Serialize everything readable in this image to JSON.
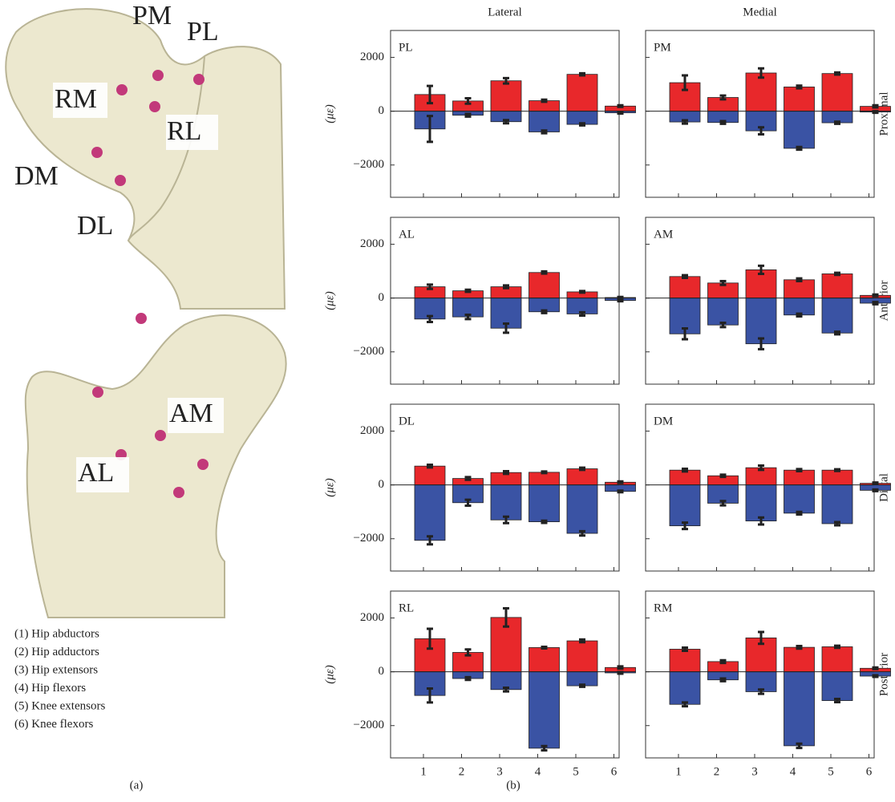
{
  "figure": {
    "labels_top": [
      "PM",
      "PL",
      "RM",
      "RL",
      "DM",
      "DL"
    ],
    "labels_bottom": [
      "AM",
      "AL"
    ],
    "legend": [
      "(1) Hip abductors",
      "(2) Hip adductors",
      "(3) Hip extensors",
      "(4) Hip flexors",
      "(5) Knee extensors",
      "(6) Knee flexors"
    ],
    "caption_a": "(a)",
    "caption_b": "(b)"
  },
  "columns": [
    "Lateral",
    "Medial"
  ],
  "rows": [
    "Proximal",
    "Anterior",
    "Distal",
    "Posterior"
  ],
  "shared": {
    "ylabel": "(με)",
    "categories": [
      "1",
      "2",
      "3",
      "4",
      "5",
      "6"
    ],
    "ylim": [
      -3200,
      3000
    ],
    "yticks": [
      {
        "value": -2000,
        "label": "−2000"
      },
      0,
      2000
    ]
  },
  "chart_data": [
    {
      "type": "bar",
      "label": "PL",
      "series": [
        {
          "color": "#e8282b",
          "values": [
            620,
            380,
            1130,
            390,
            1370,
            190
          ],
          "errors": [
            320,
            100,
            100,
            40,
            40,
            30
          ]
        },
        {
          "color": "#3a53a4",
          "values": [
            -660,
            -150,
            -390,
            -770,
            -490,
            -60
          ],
          "errors": [
            480,
            50,
            60,
            50,
            40,
            30
          ]
        }
      ]
    },
    {
      "type": "bar",
      "label": "PM",
      "series": [
        {
          "color": "#e8282b",
          "values": [
            1060,
            510,
            1420,
            900,
            1400,
            180
          ],
          "errors": [
            270,
            70,
            170,
            50,
            40,
            40
          ]
        },
        {
          "color": "#3a53a4",
          "values": [
            -400,
            -420,
            -730,
            -1380,
            -430,
            -30
          ],
          "errors": [
            60,
            50,
            130,
            50,
            40,
            30
          ]
        }
      ]
    },
    {
      "type": "bar",
      "label": "AL",
      "series": [
        {
          "color": "#e8282b",
          "values": [
            420,
            270,
            420,
            950,
            230,
            20
          ],
          "errors": [
            80,
            40,
            50,
            40,
            30,
            20
          ]
        },
        {
          "color": "#3a53a4",
          "values": [
            -780,
            -700,
            -1120,
            -510,
            -590,
            -90
          ],
          "errors": [
            110,
            80,
            170,
            50,
            60,
            30
          ]
        }
      ]
    },
    {
      "type": "bar",
      "label": "AM",
      "series": [
        {
          "color": "#e8282b",
          "values": [
            800,
            560,
            1050,
            680,
            900,
            100
          ],
          "errors": [
            50,
            70,
            150,
            50,
            40,
            30
          ]
        },
        {
          "color": "#3a53a4",
          "values": [
            -1330,
            -1000,
            -1700,
            -630,
            -1300,
            -190
          ],
          "errors": [
            200,
            80,
            200,
            50,
            50,
            40
          ]
        }
      ]
    },
    {
      "type": "bar",
      "label": "DL",
      "series": [
        {
          "color": "#e8282b",
          "values": [
            700,
            240,
            460,
            470,
            600,
            100
          ],
          "errors": [
            50,
            50,
            50,
            30,
            40,
            30
          ]
        },
        {
          "color": "#3a53a4",
          "values": [
            -2060,
            -660,
            -1300,
            -1370,
            -1800,
            -240
          ],
          "errors": [
            150,
            110,
            120,
            40,
            80,
            30
          ]
        }
      ]
    },
    {
      "type": "bar",
      "label": "DM",
      "series": [
        {
          "color": "#e8282b",
          "values": [
            550,
            340,
            640,
            550,
            550,
            60
          ],
          "errors": [
            50,
            40,
            80,
            40,
            30,
            30
          ]
        },
        {
          "color": "#3a53a4",
          "values": [
            -1520,
            -680,
            -1340,
            -1050,
            -1440,
            -200
          ],
          "errors": [
            120,
            80,
            130,
            50,
            60,
            30
          ]
        }
      ]
    },
    {
      "type": "bar",
      "label": "RL",
      "series": [
        {
          "color": "#e8282b",
          "values": [
            1230,
            720,
            2020,
            900,
            1150,
            160
          ],
          "errors": [
            370,
            110,
            340,
            30,
            50,
            40
          ]
        },
        {
          "color": "#3a53a4",
          "values": [
            -880,
            -250,
            -660,
            -2840,
            -520,
            -40
          ],
          "errors": [
            260,
            50,
            70,
            80,
            40,
            30
          ]
        }
      ]
    },
    {
      "type": "bar",
      "label": "RM",
      "series": [
        {
          "color": "#e8282b",
          "values": [
            840,
            380,
            1260,
            910,
            930,
            130
          ],
          "errors": [
            60,
            50,
            220,
            50,
            40,
            30
          ]
        },
        {
          "color": "#3a53a4",
          "values": [
            -1210,
            -300,
            -740,
            -2750,
            -1070,
            -160
          ],
          "errors": [
            70,
            50,
            80,
            80,
            60,
            30
          ]
        }
      ]
    }
  ]
}
